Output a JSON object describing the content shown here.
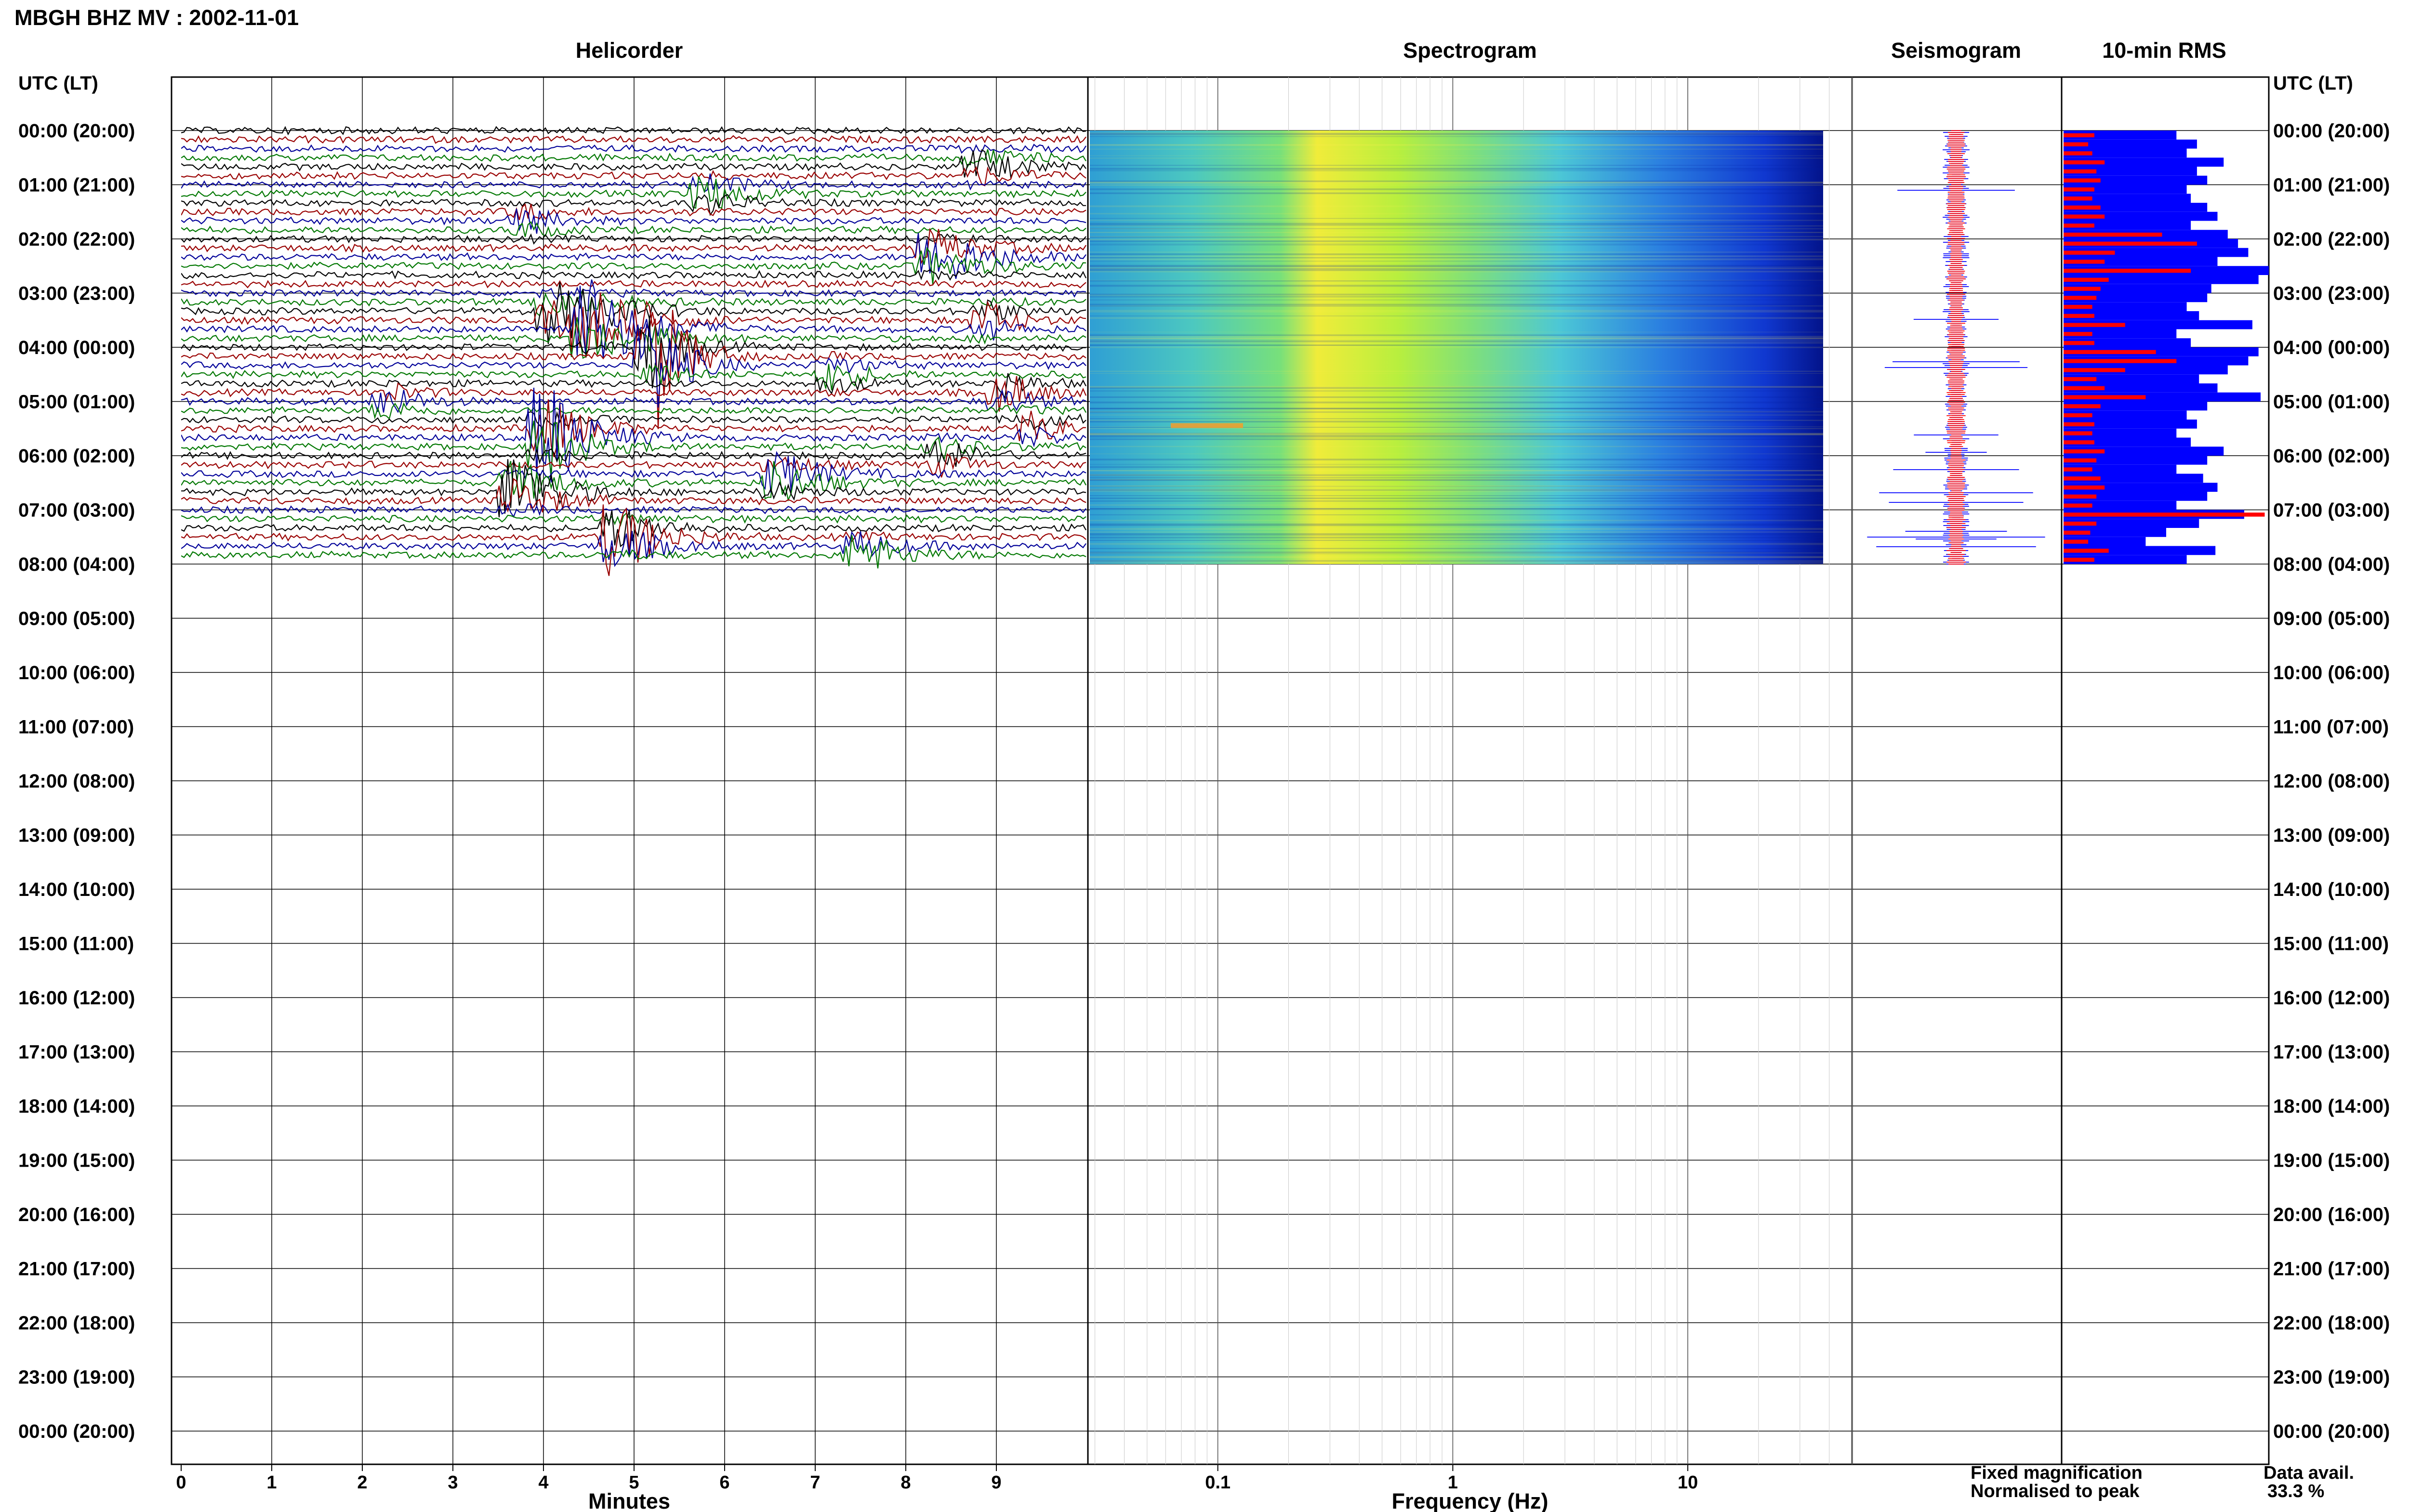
{
  "page": {
    "title": "MBGH BHZ MV : 2002-11-01"
  },
  "panels": {
    "helicorder": "Helicorder",
    "spectrogram": "Spectrogram",
    "seismogram": "Seismogram",
    "rms": "10-min RMS"
  },
  "axes": {
    "time_header": "UTC (LT)",
    "x_minutes_label": "Minutes",
    "x_frequency_label": "Frequency (Hz)"
  },
  "legend": {
    "fixed": "Fixed magnification",
    "normalised": "Normalised to peak",
    "fixed_color": "#0000ff",
    "normalised_color": "#ff0000"
  },
  "data_availability": {
    "label": "Data avail.",
    "value": "33.3 %"
  },
  "colors": {
    "trace_black": "#000000",
    "trace_red": "#990000",
    "trace_blue": "#000099",
    "trace_green": "#007700"
  },
  "chart_data": {
    "type": "line",
    "time_ticks": [
      "00:00 (20:00)",
      "01:00 (21:00)",
      "02:00 (22:00)",
      "03:00 (23:00)",
      "04:00 (00:00)",
      "05:00 (01:00)",
      "06:00 (02:00)",
      "07:00 (03:00)",
      "08:00 (04:00)",
      "09:00 (05:00)",
      "10:00 (06:00)",
      "11:00 (07:00)",
      "12:00 (08:00)",
      "13:00 (09:00)",
      "14:00 (10:00)",
      "15:00 (11:00)",
      "16:00 (12:00)",
      "17:00 (13:00)",
      "18:00 (14:00)",
      "19:00 (15:00)",
      "20:00 (16:00)",
      "21:00 (17:00)",
      "22:00 (18:00)",
      "23:00 (19:00)",
      "00:00 (20:00)"
    ],
    "minute_ticks": [
      "0",
      "1",
      "2",
      "3",
      "4",
      "5",
      "6",
      "7",
      "8",
      "9"
    ],
    "frequency_ticks": [
      "0.1",
      "1",
      "10"
    ],
    "frequency_scale": "log",
    "frequency_range_hz": [
      0.028,
      50
    ],
    "minutes_range": [
      0,
      10
    ],
    "data_end_hour_utc": 8,
    "rms_blue_widths": [
      0.55,
      0.65,
      0.6,
      0.78,
      0.65,
      0.7,
      0.6,
      0.62,
      0.7,
      0.75,
      0.62,
      0.8,
      0.85,
      0.9,
      0.75,
      1.0,
      0.95,
      0.72,
      0.7,
      0.6,
      0.66,
      0.92,
      0.55,
      0.62,
      0.95,
      0.9,
      0.8,
      0.66,
      0.75,
      0.96,
      0.7,
      0.6,
      0.65,
      0.55,
      0.62,
      0.78,
      0.7,
      0.55,
      0.68,
      0.75,
      0.7,
      0.55,
      0.88,
      0.66,
      0.5,
      0.4,
      0.74,
      0.6
    ],
    "rms_red_widths": [
      0.15,
      0.12,
      0.14,
      0.2,
      0.16,
      0.18,
      0.15,
      0.14,
      0.18,
      0.2,
      0.15,
      0.48,
      0.65,
      0.25,
      0.2,
      0.62,
      0.22,
      0.18,
      0.16,
      0.14,
      0.15,
      0.3,
      0.14,
      0.15,
      0.45,
      0.55,
      0.3,
      0.16,
      0.2,
      0.4,
      0.18,
      0.14,
      0.15,
      0.14,
      0.15,
      0.2,
      0.16,
      0.14,
      0.18,
      0.2,
      0.16,
      0.14,
      0.98,
      0.16,
      0.13,
      0.12,
      0.22,
      0.15
    ]
  }
}
